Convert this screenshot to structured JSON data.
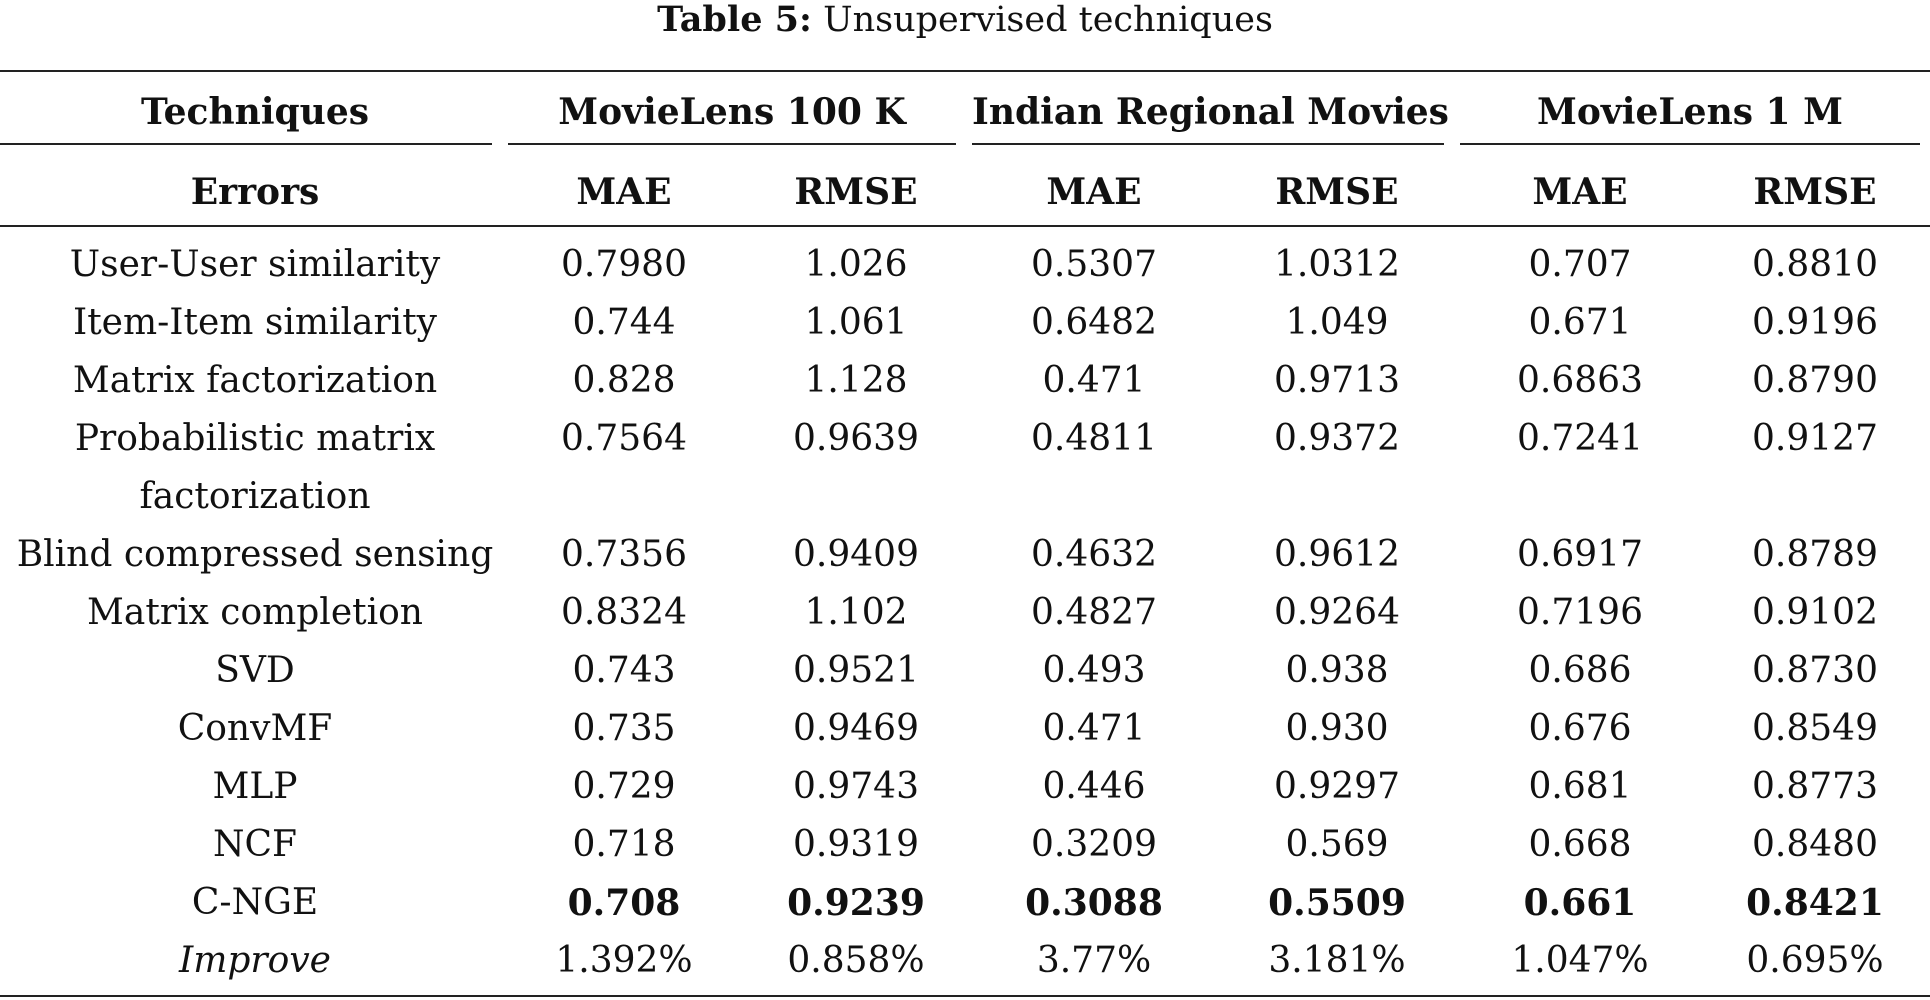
{
  "caption": {
    "label": "Table 5:",
    "text": "Unsupervised techniques"
  },
  "header": {
    "techniques": "Techniques",
    "groups": [
      "MovieLens 100 K",
      "Indian Regional Movies",
      "MovieLens 1 M"
    ],
    "errors": "Errors",
    "metrics": [
      "MAE",
      "RMSE",
      "MAE",
      "RMSE",
      "MAE",
      "RMSE"
    ]
  },
  "rows": [
    {
      "technique": "User-User similarity",
      "values": [
        "0.7980",
        "1.026",
        "0.5307",
        "1.0312",
        "0.707",
        "0.8810"
      ]
    },
    {
      "technique": "Item-Item similarity",
      "values": [
        "0.744",
        "1.061",
        "0.6482",
        "1.049",
        "0.671",
        "0.9196"
      ]
    },
    {
      "technique": "Matrix factorization",
      "values": [
        "0.828",
        "1.128",
        "0.471",
        "0.9713",
        "0.6863",
        "0.8790"
      ]
    },
    {
      "technique": "Probabilistic matrix factorization",
      "values": [
        "0.7564",
        "0.9639",
        "0.4811",
        "0.9372",
        "0.7241",
        "0.9127"
      ]
    },
    {
      "technique": "Blind compressed sensing",
      "values": [
        "0.7356",
        "0.9409",
        "0.4632",
        "0.9612",
        "0.6917",
        "0.8789"
      ]
    },
    {
      "technique": "Matrix completion",
      "values": [
        "0.8324",
        "1.102",
        "0.4827",
        "0.9264",
        "0.7196",
        "0.9102"
      ]
    },
    {
      "technique": "SVD",
      "values": [
        "0.743",
        "0.9521",
        "0.493",
        "0.938",
        "0.686",
        "0.8730"
      ]
    },
    {
      "technique": "ConvMF",
      "values": [
        "0.735",
        "0.9469",
        "0.471",
        "0.930",
        "0.676",
        "0.8549"
      ]
    },
    {
      "technique": "MLP",
      "values": [
        "0.729",
        "0.9743",
        "0.446",
        "0.9297",
        "0.681",
        "0.8773"
      ]
    },
    {
      "technique": "NCF",
      "values": [
        "0.718",
        "0.9319",
        "0.3209",
        "0.569",
        "0.668",
        "0.8480"
      ]
    },
    {
      "technique": "C-NGE",
      "values": [
        "0.708",
        "0.9239",
        "0.3088",
        "0.5509",
        "0.661",
        "0.8421"
      ]
    },
    {
      "technique": "Improve",
      "values": [
        "1.392%",
        "0.858%",
        "3.77%",
        "3.181%",
        "1.047%",
        "0.695%"
      ]
    }
  ]
}
